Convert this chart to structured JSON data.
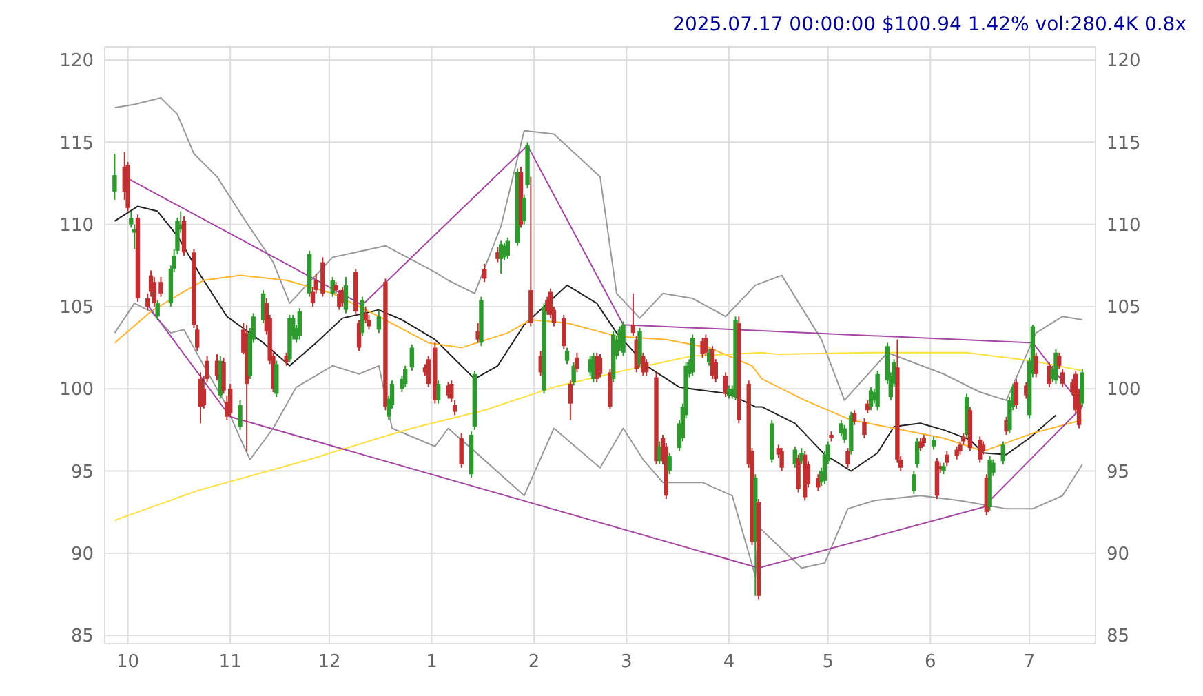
{
  "chart_data": {
    "type": "candlestick",
    "annotations": [
      "2025.07.17 00:00:00 $100.94 1.42% vol:280.4K 0.8x"
    ],
    "xlim": [
      "2024-09-24",
      "2025-07-21"
    ],
    "xticks": [
      {
        "value": "2024-10-01",
        "label": "10"
      },
      {
        "value": "2024-11-01",
        "label": "11"
      },
      {
        "value": "2024-12-01",
        "label": "12"
      },
      {
        "value": "2025-01-01",
        "label": "1"
      },
      {
        "value": "2025-02-01",
        "label": "2"
      },
      {
        "value": "2025-03-01",
        "label": "3"
      },
      {
        "value": "2025-04-01",
        "label": "4"
      },
      {
        "value": "2025-05-01",
        "label": "5"
      },
      {
        "value": "2025-06-01",
        "label": "6"
      },
      {
        "value": "2025-07-01",
        "label": "7"
      }
    ],
    "ylim": [
      84.5,
      120.8
    ],
    "yticks": [
      85,
      90,
      95,
      100,
      105,
      110,
      115,
      120
    ],
    "y2lim": [
      84.5,
      120.8
    ],
    "y2ticks": [
      85,
      90,
      95,
      100,
      105,
      110,
      115,
      120
    ],
    "grid": true,
    "x": [
      "2024-09-27",
      "2024-09-30",
      "2024-10-01",
      "2024-10-02",
      "2024-10-03",
      "2024-10-04",
      "2024-10-07",
      "2024-10-08",
      "2024-10-09",
      "2024-10-10",
      "2024-10-11",
      "2024-10-14",
      "2024-10-15",
      "2024-10-16",
      "2024-10-17",
      "2024-10-18",
      "2024-10-21",
      "2024-10-22",
      "2024-10-23",
      "2024-10-24",
      "2024-10-25",
      "2024-10-28",
      "2024-10-29",
      "2024-10-30",
      "2024-10-31",
      "2024-11-01",
      "2024-11-04",
      "2024-11-05",
      "2024-11-06",
      "2024-11-07",
      "2024-11-08",
      "2024-11-11",
      "2024-11-12",
      "2024-11-13",
      "2024-11-14",
      "2024-11-15",
      "2024-11-18",
      "2024-11-19",
      "2024-11-20",
      "2024-11-21",
      "2024-11-22",
      "2024-11-25",
      "2024-11-26",
      "2024-11-27",
      "2024-11-29",
      "2024-12-02",
      "2024-12-03",
      "2024-12-04",
      "2024-12-05",
      "2024-12-06",
      "2024-12-09",
      "2024-12-10",
      "2024-12-11",
      "2024-12-12",
      "2024-12-13",
      "2024-12-16",
      "2024-12-18",
      "2024-12-19",
      "2024-12-20",
      "2024-12-23",
      "2024-12-24",
      "2024-12-26",
      "2024-12-30",
      "2024-12-31",
      "2025-01-02",
      "2025-01-03",
      "2025-01-06",
      "2025-01-07",
      "2025-01-08",
      "2025-01-10",
      "2025-01-13",
      "2025-01-14",
      "2025-01-15",
      "2025-01-16",
      "2025-01-17",
      "2025-01-21",
      "2025-01-22",
      "2025-01-23",
      "2025-01-24",
      "2025-01-27",
      "2025-01-28",
      "2025-01-29",
      "2025-01-30",
      "2025-01-31",
      "2025-02-03",
      "2025-02-04",
      "2025-02-05",
      "2025-02-06",
      "2025-02-07",
      "2025-02-10",
      "2025-02-11",
      "2025-02-12",
      "2025-02-13",
      "2025-02-14",
      "2025-02-18",
      "2025-02-19",
      "2025-02-20",
      "2025-02-21",
      "2025-02-24",
      "2025-02-25",
      "2025-02-26",
      "2025-02-27",
      "2025-02-28",
      "2025-03-03",
      "2025-03-04",
      "2025-03-05",
      "2025-03-06",
      "2025-03-07",
      "2025-03-10",
      "2025-03-11",
      "2025-03-12",
      "2025-03-13",
      "2025-03-14",
      "2025-03-17",
      "2025-03-18",
      "2025-03-19",
      "2025-03-20",
      "2025-03-21",
      "2025-03-24",
      "2025-03-25",
      "2025-03-26",
      "2025-03-27",
      "2025-03-28",
      "2025-03-31",
      "2025-04-01",
      "2025-04-02",
      "2025-04-03",
      "2025-04-04",
      "2025-04-07",
      "2025-04-08",
      "2025-04-09",
      "2025-04-10",
      "2025-04-14",
      "2025-04-16",
      "2025-04-17",
      "2025-04-21",
      "2025-04-22",
      "2025-04-23",
      "2025-04-24",
      "2025-04-25",
      "2025-04-28",
      "2025-04-29",
      "2025-04-30",
      "2025-05-01",
      "2025-05-02",
      "2025-05-05",
      "2025-05-06",
      "2025-05-07",
      "2025-05-08",
      "2025-05-09",
      "2025-05-12",
      "2025-05-13",
      "2025-05-14",
      "2025-05-15",
      "2025-05-16",
      "2025-05-19",
      "2025-05-20",
      "2025-05-21",
      "2025-05-22",
      "2025-05-23",
      "2025-05-27",
      "2025-05-28",
      "2025-05-29",
      "2025-05-30",
      "2025-06-02",
      "2025-06-03",
      "2025-06-04",
      "2025-06-05",
      "2025-06-06",
      "2025-06-09",
      "2025-06-10",
      "2025-06-11",
      "2025-06-12",
      "2025-06-13",
      "2025-06-16",
      "2025-06-17",
      "2025-06-18",
      "2025-06-19",
      "2025-06-20",
      "2025-06-23",
      "2025-06-24",
      "2025-06-25",
      "2025-06-26",
      "2025-06-27",
      "2025-06-30",
      "2025-07-01",
      "2025-07-02",
      "2025-07-03",
      "2025-07-07",
      "2025-07-08",
      "2025-07-09",
      "2025-07-10",
      "2025-07-11",
      "2025-07-14",
      "2025-07-15",
      "2025-07-16",
      "2025-07-17"
    ],
    "ohlc": [
      [
        112,
        114.3,
        111.5,
        113
      ],
      [
        113.5,
        114.4,
        111.5,
        112
      ],
      [
        113.6,
        113.8,
        110.8,
        111
      ],
      [
        110,
        110.8,
        109.8,
        110.4
      ],
      [
        109.5,
        110,
        108.5,
        109.7
      ],
      [
        110.4,
        110.6,
        105.3,
        105.5
      ],
      [
        105.5,
        105.8,
        104.8,
        105
      ],
      [
        106.9,
        107.2,
        105.6,
        105.9
      ],
      [
        106.5,
        106.8,
        105,
        105.2
      ],
      [
        104.4,
        105.4,
        104.2,
        105.2
      ],
      [
        106.5,
        106.8,
        105.6,
        105.8
      ],
      [
        105.2,
        107.5,
        105,
        107.3
      ],
      [
        107.3,
        108.5,
        107.1,
        108.1
      ],
      [
        108.4,
        110.4,
        108.2,
        110.2
      ],
      [
        109.7,
        110.8,
        109.5,
        110
      ],
      [
        110.2,
        110.5,
        108.1,
        108.3
      ],
      [
        108.3,
        108.5,
        103.7,
        103.9
      ],
      [
        103.6,
        103.9,
        102.3,
        102.5
      ],
      [
        100.6,
        101,
        97.9,
        98.9
      ],
      [
        100,
        100.8,
        98.8,
        99
      ],
      [
        101.7,
        102,
        100.4,
        100.6
      ],
      [
        101.7,
        102.1,
        100.5,
        100.8
      ],
      [
        99.6,
        102,
        99.4,
        101.7
      ],
      [
        101.6,
        101.9,
        99.7,
        99.9
      ],
      [
        99.2,
        99.6,
        98.1,
        98.3
      ],
      [
        100,
        100.3,
        98.3,
        98.5
      ],
      [
        97.7,
        99.3,
        97.5,
        99
      ],
      [
        103.6,
        104,
        102.1,
        102.2
      ],
      [
        103.4,
        103.9,
        96.2,
        100.3
      ],
      [
        100.8,
        103.7,
        100.6,
        103.4
      ],
      [
        103,
        104.6,
        102.8,
        104.4
      ],
      [
        104.2,
        106,
        104,
        105.8
      ],
      [
        105.2,
        105.5,
        103.3,
        103.5
      ],
      [
        104.3,
        104.5,
        101.5,
        101.7
      ],
      [
        102,
        102.2,
        99.8,
        100
      ],
      [
        99.7,
        101.7,
        99.5,
        101.5
      ],
      [
        102,
        102.2,
        101.4,
        101.6
      ],
      [
        101.8,
        104.5,
        101.6,
        104.3
      ],
      [
        103.2,
        104.5,
        103,
        104.3
      ],
      [
        103,
        103.9,
        102.8,
        103.7
      ],
      [
        103.2,
        104.9,
        103,
        104.7
      ],
      [
        105.8,
        108.4,
        105.6,
        108.2
      ],
      [
        105.9,
        106.2,
        105,
        105.2
      ],
      [
        106.6,
        107,
        105.8,
        106
      ],
      [
        107.7,
        108,
        105.6,
        105.8
      ],
      [
        105.8,
        106.8,
        105.6,
        106.6
      ],
      [
        106.3,
        106.5,
        105.8,
        106
      ],
      [
        105.8,
        106,
        104.8,
        105
      ],
      [
        106,
        106.2,
        105,
        105.2
      ],
      [
        104.8,
        106.8,
        104.6,
        106.3
      ],
      [
        107.1,
        107.3,
        104.5,
        104.7
      ],
      [
        104,
        104.2,
        102.3,
        102.5
      ],
      [
        103.4,
        105.6,
        103.2,
        105.4
      ],
      [
        104.6,
        105,
        104,
        104.2
      ],
      [
        104.2,
        104.5,
        103.6,
        103.8
      ],
      [
        103.6,
        104.8,
        103.4,
        104.4
      ],
      [
        106.5,
        106.7,
        98.7,
        98.9
      ],
      [
        98.3,
        99.6,
        98.1,
        99.4
      ],
      [
        99,
        100.5,
        98.8,
        100.3
      ],
      [
        100,
        100.8,
        99.8,
        100.6
      ],
      [
        100.3,
        101.4,
        100.1,
        101.2
      ],
      [
        101.3,
        102.7,
        101.1,
        102.5
      ],
      [
        101.3,
        101.5,
        100.8,
        101
      ],
      [
        101.8,
        102,
        100.1,
        100.3
      ],
      [
        102.5,
        102.8,
        99.1,
        99.3
      ],
      [
        99.3,
        100.5,
        99.1,
        100.3
      ],
      [
        100.2,
        100.4,
        99.4,
        99.6
      ],
      [
        100.3,
        100.5,
        99.2,
        99.4
      ],
      [
        99,
        99.3,
        98.4,
        98.6
      ],
      [
        97,
        97.3,
        95.2,
        95.4
      ],
      [
        94.8,
        97.4,
        94.6,
        97.2
      ],
      [
        97.7,
        101.1,
        97.5,
        100.9
      ],
      [
        103.5,
        104,
        102.8,
        103
      ],
      [
        102.8,
        105.6,
        102.6,
        105.4
      ],
      [
        107.3,
        107.6,
        106.5,
        106.7
      ],
      [
        108.3,
        108.6,
        107.7,
        107.9
      ],
      [
        107.9,
        109,
        107,
        108.8
      ],
      [
        108,
        108.9,
        107.8,
        108.7
      ],
      [
        108.1,
        109.2,
        107.9,
        109
      ],
      [
        108.9,
        113.4,
        108.7,
        113.2
      ],
      [
        113.2,
        113.5,
        109.8,
        110
      ],
      [
        110.2,
        111.8,
        110,
        111.6
      ],
      [
        112.4,
        115,
        112.2,
        114.8
      ],
      [
        106,
        112.9,
        103.8,
        104
      ],
      [
        102,
        102.3,
        100.8,
        101
      ],
      [
        99.9,
        105.2,
        99.7,
        105
      ],
      [
        105.4,
        105.6,
        104.5,
        104.7
      ],
      [
        105.9,
        106.1,
        104.3,
        104.5
      ],
      [
        104.8,
        105,
        103.8,
        104
      ],
      [
        104.3,
        104.5,
        102.4,
        102.6
      ],
      [
        101.7,
        102.5,
        101.5,
        102.3
      ],
      [
        100.3,
        100.5,
        98.1,
        99.1
      ],
      [
        100.4,
        101.6,
        100.2,
        101.4
      ],
      [
        101.9,
        102.2,
        101,
        101.2
      ],
      [
        101,
        102,
        100.8,
        101.8
      ],
      [
        100.6,
        102.2,
        100.4,
        102
      ],
      [
        102,
        102.2,
        100.4,
        100.6
      ],
      [
        101.9,
        102.1,
        100.7,
        100.9
      ],
      [
        101,
        101.2,
        98.8,
        98.9
      ],
      [
        100.6,
        103.5,
        100.4,
        103.3
      ],
      [
        102,
        103.2,
        101.8,
        103
      ],
      [
        102.5,
        103.8,
        102.3,
        103.6
      ],
      [
        102.2,
        104.1,
        102,
        103.9
      ],
      [
        103.9,
        105.8,
        103.2,
        103.4
      ],
      [
        103,
        103.2,
        101,
        101.2
      ],
      [
        101.5,
        103.7,
        101.3,
        103.5
      ],
      [
        102,
        102.2,
        100.8,
        101
      ],
      [
        101.6,
        101.8,
        100.8,
        101
      ],
      [
        100.7,
        101,
        95.4,
        95.6
      ],
      [
        95.6,
        96.8,
        95.4,
        96.5
      ],
      [
        97,
        97.2,
        95.4,
        95.6
      ],
      [
        96.5,
        96.7,
        93.3,
        93.5
      ],
      [
        95,
        96.1,
        94.8,
        95.9
      ],
      [
        96.4,
        98.1,
        96.2,
        97.9
      ],
      [
        97,
        99.1,
        96.8,
        98.9
      ],
      [
        98.4,
        101.6,
        98.2,
        101.4
      ],
      [
        100.9,
        101.8,
        100.7,
        101.6
      ],
      [
        101,
        103.3,
        100.8,
        103.1
      ],
      [
        102.9,
        103.1,
        101.9,
        102.1
      ],
      [
        103.1,
        103.3,
        102,
        102.2
      ],
      [
        101.6,
        102.4,
        101.4,
        102.2
      ],
      [
        102.4,
        102.6,
        100.6,
        100.8
      ],
      [
        101.6,
        101.8,
        100.4,
        100.6
      ],
      [
        100.8,
        101,
        99.5,
        99.7
      ],
      [
        99.6,
        100.2,
        99.4,
        100
      ],
      [
        99.6,
        100.2,
        99.4,
        100
      ],
      [
        99.5,
        104.4,
        99.3,
        104.2
      ],
      [
        104,
        104.4,
        97.9,
        98.1
      ],
      [
        100.3,
        100.5,
        95.2,
        95.4
      ],
      [
        96.2,
        96.4,
        90.5,
        90.7
      ],
      [
        90.7,
        94.8,
        87.4,
        94.6
      ],
      [
        93.1,
        93.3,
        87.2,
        87.4
      ],
      [
        95.7,
        98.1,
        95.5,
        97.9
      ],
      [
        96.4,
        96.6,
        95.8,
        96
      ],
      [
        96.2,
        96.4,
        95,
        95.2
      ],
      [
        95.4,
        96.5,
        95.2,
        96.3
      ],
      [
        95.8,
        96,
        93.7,
        93.9
      ],
      [
        95.6,
        96.4,
        95.4,
        96.1
      ],
      [
        96,
        96.2,
        93.2,
        93.4
      ],
      [
        95.4,
        95.6,
        94,
        94.2
      ],
      [
        94.6,
        94.8,
        93.8,
        94
      ],
      [
        94.3,
        95.2,
        94.1,
        95
      ],
      [
        94.4,
        96.2,
        94.2,
        96
      ],
      [
        95.6,
        96.8,
        95.4,
        96.6
      ],
      [
        97.2,
        97.4,
        96.8,
        97
      ],
      [
        97.3,
        98.1,
        97.1,
        97.9
      ],
      [
        96.9,
        97.8,
        96.7,
        97.6
      ],
      [
        96.2,
        96.4,
        95.2,
        95.4
      ],
      [
        96.2,
        98.6,
        96,
        98.4
      ],
      [
        98.5,
        98.7,
        97.8,
        98
      ],
      [
        98,
        98.2,
        97,
        97.2
      ],
      [
        99.1,
        99.3,
        98.5,
        98.7
      ],
      [
        98.9,
        100.1,
        98.7,
        99.9
      ],
      [
        99.3,
        100,
        99.1,
        99.8
      ],
      [
        98.9,
        101.1,
        98.7,
        100.9
      ],
      [
        100.5,
        102.8,
        100.3,
        102.6
      ],
      [
        99.5,
        101,
        99.3,
        100.8
      ],
      [
        100.3,
        101.8,
        100.1,
        101.6
      ],
      [
        101.3,
        103,
        95.5,
        95.7
      ],
      [
        95.7,
        95.9,
        95,
        95.2
      ],
      [
        93.8,
        95,
        93.6,
        94.8
      ],
      [
        95.4,
        97,
        95.2,
        96.8
      ],
      [
        96.8,
        97,
        96.2,
        96.4
      ],
      [
        97,
        97.2,
        96.5,
        96.7
      ],
      [
        96.5,
        97.1,
        96.3,
        96.9
      ],
      [
        95.6,
        95.8,
        93.3,
        93.5
      ],
      [
        95.3,
        95.5,
        94.9,
        95.1
      ],
      [
        95,
        95.5,
        94.8,
        95.3
      ],
      [
        96,
        96.2,
        95.3,
        95.5
      ],
      [
        96.3,
        96.5,
        95.7,
        95.9
      ],
      [
        96.6,
        96.8,
        96,
        96.2
      ],
      [
        97.1,
        97.3,
        96.6,
        96.8
      ],
      [
        97.2,
        99.7,
        97,
        99.5
      ],
      [
        98.7,
        98.9,
        96.2,
        96.4
      ],
      [
        96.9,
        97.1,
        95.5,
        95.7
      ],
      [
        96.6,
        96.8,
        96,
        96.2
      ],
      [
        94.6,
        94.8,
        92.3,
        92.5
      ],
      [
        92.8,
        95.9,
        92.6,
        95.7
      ],
      [
        94.9,
        95.7,
        94.7,
        95.5
      ],
      [
        95.6,
        96.8,
        95.4,
        96.6
      ],
      [
        98.1,
        98.3,
        97.2,
        97.4
      ],
      [
        97.5,
        99.5,
        97.3,
        99.3
      ],
      [
        98.9,
        100.3,
        98.7,
        100.1
      ],
      [
        100.4,
        100.6,
        98.8,
        99
      ],
      [
        100.2,
        100.4,
        99.4,
        99.6
      ],
      [
        98.4,
        101.9,
        98.2,
        101.7
      ],
      [
        100.9,
        103.9,
        100.7,
        103.8
      ],
      [
        102,
        102.2,
        100.7,
        100.9
      ],
      [
        101.4,
        101.6,
        100.1,
        100.3
      ],
      [
        100.6,
        101.4,
        100.4,
        101.2
      ],
      [
        100.5,
        102.4,
        100.3,
        102.2
      ],
      [
        102,
        102.2,
        101.2,
        101.4
      ],
      [
        101,
        101.2,
        100.1,
        100.3
      ],
      [
        100.4,
        100.6,
        99.6,
        99.8
      ],
      [
        100.9,
        101.1,
        98.5,
        98.7
      ],
      [
        99.8,
        100,
        97.6,
        97.8
      ],
      [
        99.1,
        101.2,
        98.9,
        101
      ]
    ],
    "series": [
      {
        "type": "line",
        "color": "#999999",
        "x": [
          "2024-09-27",
          "2024-10-03",
          "2024-10-11",
          "2024-10-16",
          "2024-10-21",
          "2024-10-28",
          "2024-11-05",
          "2024-11-14",
          "2024-11-19",
          "2024-12-02",
          "2024-12-18",
          "2025-01-02",
          "2025-01-06",
          "2025-01-14",
          "2025-01-22",
          "2025-01-29",
          "2025-02-07",
          "2025-02-21",
          "2025-02-26",
          "2025-03-05",
          "2025-03-12",
          "2025-03-21",
          "2025-03-31",
          "2025-04-09",
          "2025-04-17",
          "2025-04-29",
          "2025-05-06",
          "2025-05-19",
          "2025-06-05",
          "2025-06-16",
          "2025-06-24",
          "2025-07-03",
          "2025-07-11",
          "2025-07-17"
        ],
        "values": [
          117.1,
          117.3,
          117.7,
          116.7,
          114.3,
          112.9,
          110.4,
          107.7,
          105.2,
          108,
          108.7,
          107.1,
          106.6,
          105.8,
          109.9,
          115.7,
          115.5,
          112.9,
          105.8,
          104.3,
          105.8,
          105.5,
          104.4,
          106.3,
          106.9,
          103,
          99.3,
          102.2,
          100.9,
          99.8,
          99.3,
          103.4,
          104.4,
          104.2
        ]
      },
      {
        "type": "line",
        "color": "#999999",
        "x": [
          "2024-09-27",
          "2024-10-03",
          "2024-10-08",
          "2024-10-14",
          "2024-10-18",
          "2024-10-24",
          "2024-10-30",
          "2024-11-04",
          "2024-11-07",
          "2024-11-14",
          "2024-11-21",
          "2024-12-02",
          "2024-12-10",
          "2024-12-16",
          "2024-12-20",
          "2025-01-02",
          "2025-01-06",
          "2025-01-14",
          "2025-01-29",
          "2025-02-07",
          "2025-02-21",
          "2025-02-28",
          "2025-03-06",
          "2025-03-12",
          "2025-03-24",
          "2025-04-02",
          "2025-04-09",
          "2025-04-10",
          "2025-04-23",
          "2025-04-30",
          "2025-05-07",
          "2025-05-15",
          "2025-05-29",
          "2025-06-10",
          "2025-06-24",
          "2025-07-02",
          "2025-07-11",
          "2025-07-17"
        ],
        "values": [
          103.4,
          105.2,
          104.7,
          103.4,
          103.6,
          101.4,
          99.3,
          97,
          95.7,
          97.6,
          100.1,
          101.4,
          100.9,
          101.4,
          97.6,
          96.5,
          97.6,
          96.2,
          93.5,
          97.6,
          95.2,
          97.6,
          95.7,
          94.3,
          94.3,
          93.5,
          88.6,
          91.6,
          89.1,
          89.4,
          92.7,
          93.2,
          93.5,
          93.2,
          92.7,
          92.7,
          93.5,
          95.4
        ]
      },
      {
        "type": "line",
        "color": "#222222",
        "x": [
          "2024-09-27",
          "2024-10-04",
          "2024-10-10",
          "2024-10-16",
          "2024-10-23",
          "2024-10-31",
          "2024-11-11",
          "2024-11-19",
          "2024-11-27",
          "2024-12-05",
          "2024-12-16",
          "2024-12-23",
          "2025-01-02",
          "2025-01-06",
          "2025-01-14",
          "2025-01-21",
          "2025-01-29",
          "2025-02-04",
          "2025-02-11",
          "2025-02-20",
          "2025-02-26",
          "2025-03-07",
          "2025-03-17",
          "2025-03-24",
          "2025-04-01",
          "2025-04-09",
          "2025-04-11",
          "2025-04-21",
          "2025-04-30",
          "2025-05-08",
          "2025-05-16",
          "2025-05-21",
          "2025-05-29",
          "2025-06-05",
          "2025-06-13",
          "2025-06-17",
          "2025-06-24",
          "2025-07-01",
          "2025-07-09"
        ],
        "values": [
          110.2,
          111.1,
          110.8,
          109.3,
          106.9,
          104.4,
          102.8,
          101.4,
          102.8,
          104.3,
          104.8,
          104.2,
          103,
          102.2,
          100.6,
          101.4,
          103.9,
          105,
          106.3,
          105.2,
          103.4,
          101.4,
          100.1,
          99.9,
          99.7,
          98.9,
          98.9,
          97.9,
          96,
          95,
          96.1,
          97.7,
          97.9,
          97.5,
          96.9,
          96.1,
          96,
          97,
          98.4
        ]
      },
      {
        "type": "line",
        "color": "#ffb52e",
        "x": [
          "2024-09-27",
          "2024-10-08",
          "2024-10-17",
          "2024-10-24",
          "2024-11-04",
          "2024-11-18",
          "2024-12-02",
          "2024-12-16",
          "2024-12-31",
          "2025-01-10",
          "2025-01-24",
          "2025-01-31",
          "2025-02-11",
          "2025-02-26",
          "2025-03-13",
          "2025-03-26",
          "2025-04-08",
          "2025-04-11",
          "2025-04-24",
          "2025-05-08",
          "2025-05-21",
          "2025-06-05",
          "2025-06-17",
          "2025-07-02",
          "2025-07-17"
        ],
        "values": [
          102.8,
          104.7,
          105.8,
          106.6,
          106.9,
          106.6,
          105.8,
          104.4,
          102.8,
          102.5,
          103.4,
          104.2,
          104,
          103.2,
          103,
          102.5,
          101.4,
          100.6,
          99.3,
          98.1,
          97.6,
          97,
          96.2,
          97.3,
          98.1
        ]
      },
      {
        "type": "line",
        "color": "#ffe040",
        "x": [
          "2024-09-27",
          "2024-10-22",
          "2024-11-25",
          "2024-12-16",
          "2024-12-26",
          "2025-01-17",
          "2025-02-07",
          "2025-02-28",
          "2025-03-21",
          "2025-04-11",
          "2025-04-16",
          "2025-05-14",
          "2025-06-12",
          "2025-07-02",
          "2025-07-17"
        ],
        "values": [
          92,
          93.8,
          95.7,
          97,
          97.6,
          98.7,
          100.1,
          101.1,
          102,
          102.2,
          102.1,
          102.2,
          102.2,
          101.7,
          101.1
        ]
      },
      {
        "type": "line",
        "color": "#a347a3",
        "x": [
          "2024-09-30",
          "2024-12-11",
          "2025-01-30",
          "2025-02-28",
          "2025-07-02",
          "2025-07-17"
        ],
        "values": [
          112.9,
          105.1,
          114.8,
          103.9,
          102.8,
          98.9
        ]
      },
      {
        "type": "line",
        "color": "#a347a3",
        "x": [
          "2024-10-07",
          "2024-11-01",
          "2025-04-10",
          "2025-06-17",
          "2025-07-17"
        ],
        "values": [
          105.1,
          98.3,
          89.1,
          92.8,
          98.9
        ]
      }
    ]
  }
}
